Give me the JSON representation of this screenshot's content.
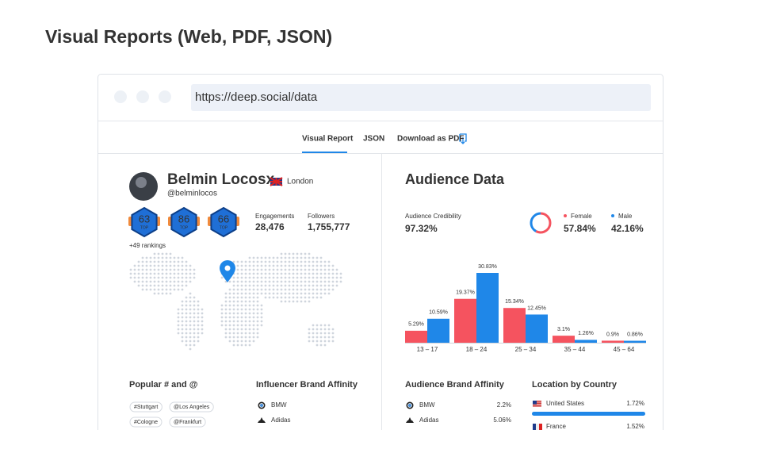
{
  "title": "Visual Reports (Web, PDF, JSON)",
  "browser": {
    "url": "https://deep.social/data"
  },
  "tabs": [
    "Visual Report",
    "JSON",
    "Download as PDF"
  ],
  "profile": {
    "name": "Belmin Locosx",
    "location": "London",
    "handle": "@belminlocos",
    "badges": [
      {
        "rank": "63",
        "tier": "TOP"
      },
      {
        "rank": "86",
        "tier": "TOP"
      },
      {
        "rank": "66",
        "tier": "TOP"
      }
    ],
    "rankings": "+49 rankings",
    "stats": [
      {
        "label": "Engagements",
        "value": "28,476"
      },
      {
        "label": "Followers",
        "value": "1,755,777"
      }
    ]
  },
  "audience": {
    "title": "Audience Data",
    "credibility": {
      "label": "Audience Credibility",
      "value": "97.32%"
    },
    "gender": [
      {
        "name": "Female",
        "value": 57.84,
        "value_label": "57.84%",
        "color": "#f5535f"
      },
      {
        "name": "Male",
        "value": 42.16,
        "value_label": "42.16%",
        "color": "#1f87e8"
      }
    ],
    "age": {
      "type": "bar",
      "categories": [
        "13 – 17",
        "18 – 24",
        "25 – 34",
        "35 – 44",
        "45 – 64"
      ],
      "series": [
        {
          "color": "#f5535f",
          "values": [
            5.29,
            19.37,
            15.34,
            3.1,
            0.9
          ],
          "value_labels": [
            "5.29%",
            "19.37%",
            "15.34%",
            "3.1%",
            "0.9%"
          ]
        },
        {
          "color": "#1f87e8",
          "values": [
            10.59,
            30.83,
            12.45,
            1.26,
            0.86
          ],
          "value_labels": [
            "10.59%",
            "30.83%",
            "12.45%",
            "1.26%",
            "0.86%"
          ]
        }
      ]
    }
  },
  "popular": {
    "title": "Popular # and @",
    "tags": [
      "#Stuttgart",
      "@Los Angeles",
      "#Cologne",
      "@Frankfurt"
    ]
  },
  "influencer_brands": {
    "title": "Influencer Brand Affinity",
    "items": [
      "BMW",
      "Adidas"
    ]
  },
  "audience_brands": {
    "title": "Audience Brand Affinity",
    "items": [
      {
        "name": "BMW",
        "value": "2.2%"
      },
      {
        "name": "Adidas",
        "value": "5.06%"
      }
    ]
  },
  "countries": {
    "title": "Location by Country",
    "items": [
      {
        "name": "United States",
        "value": "1.72%"
      },
      {
        "name": "France",
        "value": "1.52%"
      }
    ]
  }
}
